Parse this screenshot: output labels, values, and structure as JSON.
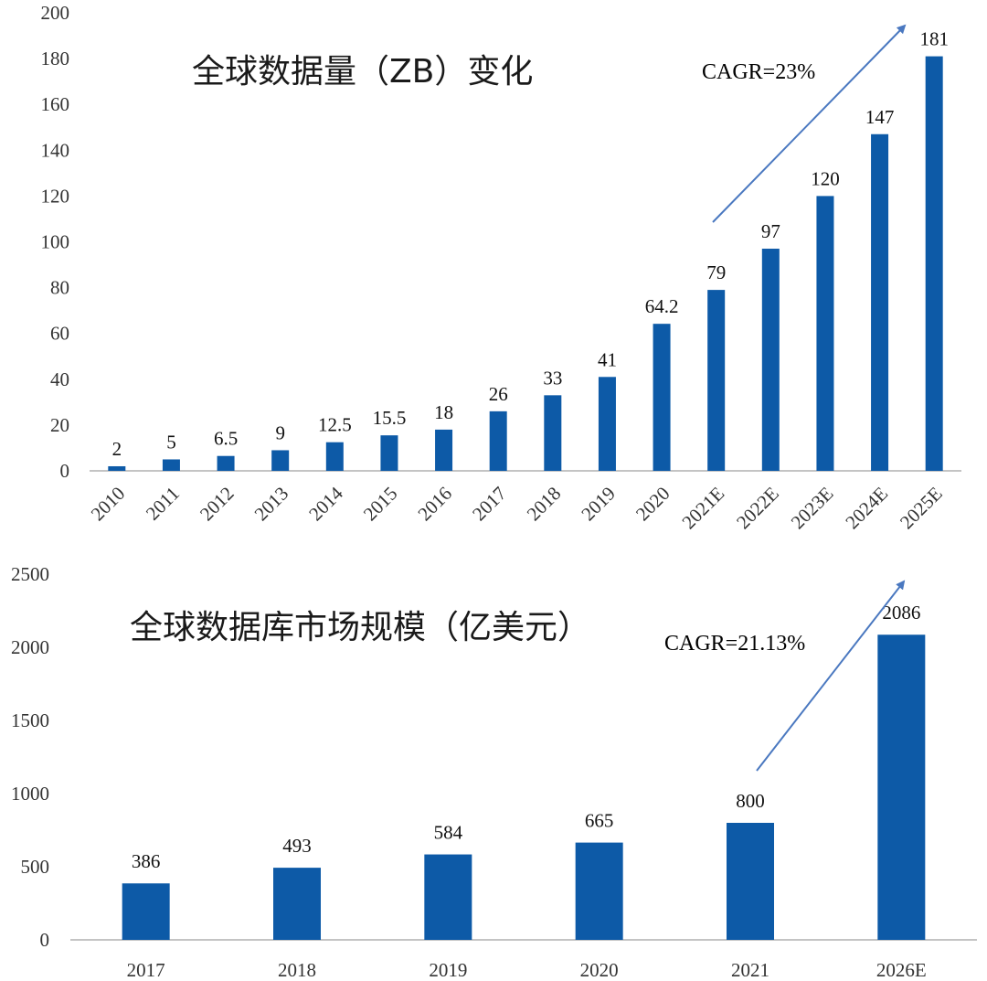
{
  "colors": {
    "bar": "#0d5aa7",
    "arrow": "#4a78c0",
    "axis": "#b0b0b0"
  },
  "chart_data": [
    {
      "type": "bar",
      "title": "全球数据量（ZB）变化",
      "annotation": "CAGR=23%",
      "categories": [
        "2010",
        "2011",
        "2012",
        "2013",
        "2014",
        "2015",
        "2016",
        "2017",
        "2018",
        "2019",
        "2020",
        "2021E",
        "2022E",
        "2023E",
        "2024E",
        "2025E"
      ],
      "values": [
        2,
        5,
        6.5,
        9,
        12.5,
        15.5,
        18,
        26,
        33,
        41,
        64.2,
        79,
        97,
        120,
        147,
        181
      ],
      "value_labels": [
        "2",
        "5",
        "6.5",
        "9",
        "12.5",
        "15.5",
        "18",
        "26",
        "33",
        "41",
        "64.2",
        "79",
        "97",
        "120",
        "147",
        "181"
      ],
      "yticks": [
        "0",
        "20",
        "40",
        "60",
        "80",
        "100",
        "120",
        "140",
        "160",
        "180",
        "200"
      ],
      "ylim": [
        0,
        200
      ],
      "grid": false,
      "xlabel": "",
      "ylabel": ""
    },
    {
      "type": "bar",
      "title": "全球数据库市场规模（亿美元）",
      "annotation": "CAGR=21.13%",
      "categories": [
        "2017",
        "2018",
        "2019",
        "2020",
        "2021",
        "2026E"
      ],
      "values": [
        386,
        493,
        584,
        665,
        800,
        2086
      ],
      "value_labels": [
        "386",
        "493",
        "584",
        "665",
        "800",
        "2086"
      ],
      "yticks": [
        "0",
        "500",
        "1000",
        "1500",
        "2000",
        "2500"
      ],
      "ylim": [
        0,
        2500
      ],
      "grid": false,
      "xlabel": "",
      "ylabel": ""
    }
  ]
}
